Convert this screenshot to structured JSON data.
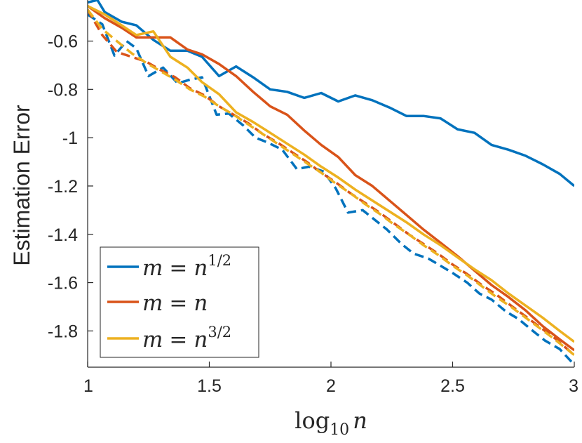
{
  "chart_data": {
    "type": "line",
    "title": "",
    "xlabel_base": "log",
    "xlabel_sub": "10",
    "xlabel_var": "n",
    "ylabel": "Estimation Error",
    "xlim": [
      1,
      3
    ],
    "ylim": [
      -1.95,
      -0.43
    ],
    "xticks": [
      1,
      1.5,
      2,
      2.5,
      3
    ],
    "xtick_labels": [
      "1",
      "1.5",
      "2",
      "2.5",
      "3"
    ],
    "yticks": [
      -0.6,
      -0.8,
      -1,
      -1.2,
      -1.4,
      -1.6,
      -1.8
    ],
    "ytick_labels": [
      "-0.6",
      "-0.8",
      "-1",
      "-1.2",
      "-1.4",
      "-1.6",
      "-1.8"
    ],
    "grid": false,
    "legend_position": "bottom-left",
    "legend": [
      {
        "name": "m = n^{1/2}",
        "lhs": "m",
        "eq": "=",
        "base": "n",
        "sup": "1/2",
        "color": "#0072BD"
      },
      {
        "name": "m = n",
        "lhs": "m",
        "eq": "=",
        "base": "n",
        "sup": "",
        "color": "#D95319"
      },
      {
        "name": "m = n^{3/2}",
        "lhs": "m",
        "eq": "=",
        "base": "n",
        "sup": "3/2",
        "color": "#EDB120"
      }
    ],
    "series": [
      {
        "name": "m = n^{1/2}",
        "color": "#0072BD",
        "style": "solid",
        "x": [
          1.0,
          1.04,
          1.07,
          1.14,
          1.2,
          1.27,
          1.34,
          1.41,
          1.47,
          1.54,
          1.61,
          1.68,
          1.75,
          1.82,
          1.89,
          1.96,
          2.03,
          2.1,
          2.17,
          2.24,
          2.31,
          2.38,
          2.45,
          2.52,
          2.59,
          2.66,
          2.73,
          2.8,
          2.87,
          2.94,
          3.0
        ],
        "y": [
          -0.44,
          -0.43,
          -0.48,
          -0.52,
          -0.535,
          -0.595,
          -0.64,
          -0.64,
          -0.665,
          -0.745,
          -0.705,
          -0.75,
          -0.8,
          -0.81,
          -0.835,
          -0.815,
          -0.85,
          -0.825,
          -0.845,
          -0.875,
          -0.91,
          -0.91,
          -0.92,
          -0.965,
          -0.98,
          -1.03,
          -1.05,
          -1.075,
          -1.11,
          -1.15,
          -1.2
        ]
      },
      {
        "name": "m = n",
        "color": "#D95319",
        "style": "solid",
        "x": [
          1.0,
          1.07,
          1.14,
          1.2,
          1.27,
          1.34,
          1.41,
          1.47,
          1.54,
          1.61,
          1.68,
          1.75,
          1.82,
          1.89,
          1.96,
          2.03,
          2.1,
          2.17,
          2.24,
          2.31,
          2.38,
          2.45,
          2.52,
          2.59,
          2.66,
          2.73,
          2.8,
          2.87,
          2.94,
          3.0
        ],
        "y": [
          -0.455,
          -0.505,
          -0.545,
          -0.585,
          -0.585,
          -0.585,
          -0.635,
          -0.655,
          -0.695,
          -0.745,
          -0.81,
          -0.87,
          -0.905,
          -0.97,
          -1.03,
          -1.08,
          -1.155,
          -1.2,
          -1.26,
          -1.32,
          -1.38,
          -1.435,
          -1.49,
          -1.55,
          -1.61,
          -1.66,
          -1.715,
          -1.78,
          -1.835,
          -1.88
        ]
      },
      {
        "name": "m = n^{3/2}",
        "color": "#EDB120",
        "style": "solid",
        "x": [
          1.0,
          1.07,
          1.14,
          1.2,
          1.27,
          1.34,
          1.41,
          1.47,
          1.54,
          1.61,
          1.68,
          1.75,
          1.82,
          1.89,
          1.96,
          2.03,
          2.1,
          2.17,
          2.24,
          2.31,
          2.38,
          2.45,
          2.52,
          2.59,
          2.66,
          2.73,
          2.8,
          2.87,
          2.94,
          3.0
        ],
        "y": [
          -0.455,
          -0.49,
          -0.535,
          -0.575,
          -0.56,
          -0.665,
          -0.71,
          -0.77,
          -0.82,
          -0.895,
          -0.935,
          -0.98,
          -1.025,
          -1.07,
          -1.12,
          -1.165,
          -1.215,
          -1.26,
          -1.305,
          -1.35,
          -1.4,
          -1.445,
          -1.495,
          -1.545,
          -1.59,
          -1.645,
          -1.695,
          -1.745,
          -1.8,
          -1.845
        ]
      },
      {
        "name": "m = n^{1/2} (dashed)",
        "color": "#0072BD",
        "style": "dashed",
        "x": [
          1.0,
          1.06,
          1.11,
          1.16,
          1.2,
          1.25,
          1.31,
          1.37,
          1.42,
          1.47,
          1.53,
          1.58,
          1.64,
          1.69,
          1.74,
          1.8,
          1.86,
          1.91,
          1.97,
          2.02,
          2.07,
          2.13,
          2.18,
          2.23,
          2.29,
          2.34,
          2.4,
          2.45,
          2.5,
          2.56,
          2.61,
          2.66,
          2.72,
          2.77,
          2.83,
          2.88,
          2.94,
          3.0
        ],
        "y": [
          -0.49,
          -0.53,
          -0.66,
          -0.6,
          -0.63,
          -0.745,
          -0.71,
          -0.775,
          -0.76,
          -0.75,
          -0.905,
          -0.9,
          -0.95,
          -1.0,
          -1.02,
          -1.05,
          -1.13,
          -1.12,
          -1.14,
          -1.21,
          -1.31,
          -1.3,
          -1.34,
          -1.38,
          -1.44,
          -1.48,
          -1.5,
          -1.53,
          -1.56,
          -1.6,
          -1.645,
          -1.67,
          -1.72,
          -1.75,
          -1.8,
          -1.84,
          -1.875,
          -1.94
        ]
      },
      {
        "name": "m = n (dashed)",
        "color": "#D95319",
        "style": "dashed",
        "x": [
          1.0,
          1.06,
          1.12,
          1.18,
          1.24,
          1.3,
          1.36,
          1.42,
          1.48,
          1.54,
          1.6,
          1.66,
          1.72,
          1.78,
          1.84,
          1.9,
          1.96,
          2.02,
          2.08,
          2.14,
          2.2,
          2.26,
          2.32,
          2.38,
          2.44,
          2.5,
          2.56,
          2.62,
          2.68,
          2.74,
          2.8,
          2.86,
          2.92,
          3.0
        ],
        "y": [
          -0.47,
          -0.575,
          -0.645,
          -0.665,
          -0.685,
          -0.72,
          -0.75,
          -0.795,
          -0.825,
          -0.87,
          -0.905,
          -0.94,
          -0.985,
          -1.02,
          -1.06,
          -1.1,
          -1.145,
          -1.185,
          -1.23,
          -1.27,
          -1.31,
          -1.355,
          -1.4,
          -1.44,
          -1.48,
          -1.525,
          -1.565,
          -1.61,
          -1.65,
          -1.695,
          -1.74,
          -1.785,
          -1.83,
          -1.9
        ]
      },
      {
        "name": "m = n^{3/2} (dashed)",
        "color": "#EDB120",
        "style": "dashed",
        "x": [
          1.0,
          1.06,
          1.12,
          1.18,
          1.24,
          1.3,
          1.36,
          1.42,
          1.48,
          1.54,
          1.6,
          1.66,
          1.72,
          1.78,
          1.84,
          1.9,
          1.96,
          2.02,
          2.08,
          2.14,
          2.2,
          2.26,
          2.32,
          2.38,
          2.44,
          2.5,
          2.56,
          2.62,
          2.68,
          2.74,
          2.8,
          2.86,
          2.92,
          3.0
        ],
        "y": [
          -0.47,
          -0.55,
          -0.6,
          -0.65,
          -0.69,
          -0.725,
          -0.76,
          -0.8,
          -0.83,
          -0.87,
          -0.905,
          -0.945,
          -0.985,
          -1.025,
          -1.065,
          -1.105,
          -1.145,
          -1.19,
          -1.23,
          -1.275,
          -1.315,
          -1.36,
          -1.4,
          -1.445,
          -1.485,
          -1.53,
          -1.57,
          -1.615,
          -1.66,
          -1.7,
          -1.745,
          -1.79,
          -1.835,
          -1.9
        ]
      }
    ]
  }
}
